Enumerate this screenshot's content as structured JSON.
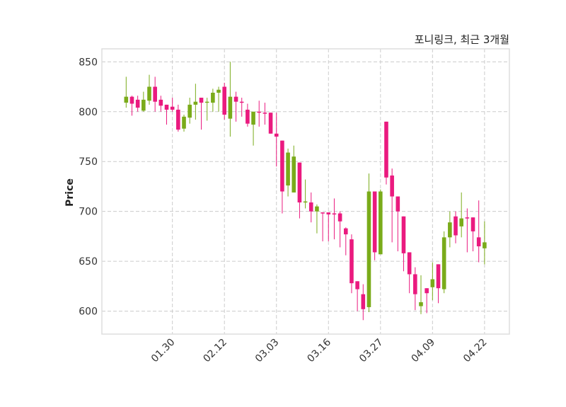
{
  "chart_data": {
    "type": "candlestick",
    "title": "포니링크, 최근 3개월",
    "xlabel": "",
    "ylabel": "Price",
    "ylim": [
      577,
      863
    ],
    "xlim": [
      -3.2,
      67.3
    ],
    "grid": true,
    "y_ticks": [
      600,
      650,
      700,
      750,
      800,
      850
    ],
    "x_ticks": [
      {
        "index": 9,
        "label": "01.30"
      },
      {
        "index": 18,
        "label": "02.12"
      },
      {
        "index": 27,
        "label": "03.03"
      },
      {
        "index": 36,
        "label": "03.16"
      },
      {
        "index": 45,
        "label": "03.27"
      },
      {
        "index": 54,
        "label": "04.09"
      },
      {
        "index": 63,
        "label": "04.22"
      }
    ],
    "colors": {
      "up": "#7aab1a",
      "down": "#ea1a7f",
      "grid": "#cccccc",
      "frame": "#dddddd"
    },
    "ohlc": [
      [
        809,
        835,
        804,
        815
      ],
      [
        815,
        816,
        796,
        808
      ],
      [
        812,
        816,
        800,
        804
      ],
      [
        801,
        820,
        800,
        812
      ],
      [
        811,
        837,
        807,
        825
      ],
      [
        825,
        835,
        800,
        810
      ],
      [
        812,
        816,
        800,
        806
      ],
      [
        807,
        807,
        787,
        802
      ],
      [
        805,
        814,
        800,
        802
      ],
      [
        802,
        807,
        780,
        782
      ],
      [
        783,
        797,
        780,
        795
      ],
      [
        794,
        814,
        788,
        807
      ],
      [
        807,
        828,
        792,
        810
      ],
      [
        814,
        814,
        782,
        809
      ],
      [
        809,
        814,
        791,
        810
      ],
      [
        809,
        823,
        800,
        819
      ],
      [
        819,
        825,
        800,
        822
      ],
      [
        825,
        829,
        792,
        797
      ],
      [
        793,
        850,
        775,
        815
      ],
      [
        815,
        820,
        790,
        810
      ],
      [
        810,
        814,
        795,
        809
      ],
      [
        802,
        808,
        785,
        788
      ],
      [
        787,
        800,
        766,
        800
      ],
      [
        800,
        811,
        785,
        799
      ],
      [
        799,
        809,
        787,
        798
      ],
      [
        799,
        799,
        778,
        778
      ],
      [
        778,
        799,
        745,
        775
      ],
      [
        771,
        771,
        698,
        720
      ],
      [
        726,
        763,
        715,
        759
      ],
      [
        719,
        766,
        719,
        755
      ],
      [
        749,
        749,
        693,
        709
      ],
      [
        710,
        732,
        703,
        710
      ],
      [
        709,
        719,
        689,
        700
      ],
      [
        700,
        707,
        678,
        705
      ],
      [
        699,
        699,
        670,
        698
      ],
      [
        699,
        699,
        670,
        697
      ],
      [
        698,
        713,
        672,
        697
      ],
      [
        698,
        700,
        664,
        690
      ],
      [
        683,
        684,
        656,
        677
      ],
      [
        672,
        677,
        618,
        628
      ],
      [
        630,
        630,
        600,
        622
      ],
      [
        617,
        627,
        591,
        602
      ],
      [
        604,
        738,
        599,
        720
      ],
      [
        720,
        720,
        651,
        659
      ],
      [
        657,
        722,
        657,
        720
      ],
      [
        790,
        790,
        727,
        734
      ],
      [
        736,
        743,
        669,
        715
      ],
      [
        715,
        715,
        660,
        700
      ],
      [
        695,
        695,
        640,
        658
      ],
      [
        659,
        659,
        618,
        637
      ],
      [
        637,
        644,
        601,
        617
      ],
      [
        605,
        636,
        597,
        609
      ],
      [
        623,
        623,
        598,
        618
      ],
      [
        624,
        649,
        611,
        632
      ],
      [
        647,
        647,
        608,
        623
      ],
      [
        622,
        680,
        618,
        674
      ],
      [
        674,
        700,
        664,
        689
      ],
      [
        695,
        700,
        668,
        676
      ],
      [
        685,
        719,
        674,
        693
      ],
      [
        694,
        703,
        659,
        693
      ],
      [
        694,
        694,
        660,
        680
      ],
      [
        674,
        711,
        649,
        665
      ],
      [
        663,
        690,
        647,
        669
      ]
    ]
  }
}
